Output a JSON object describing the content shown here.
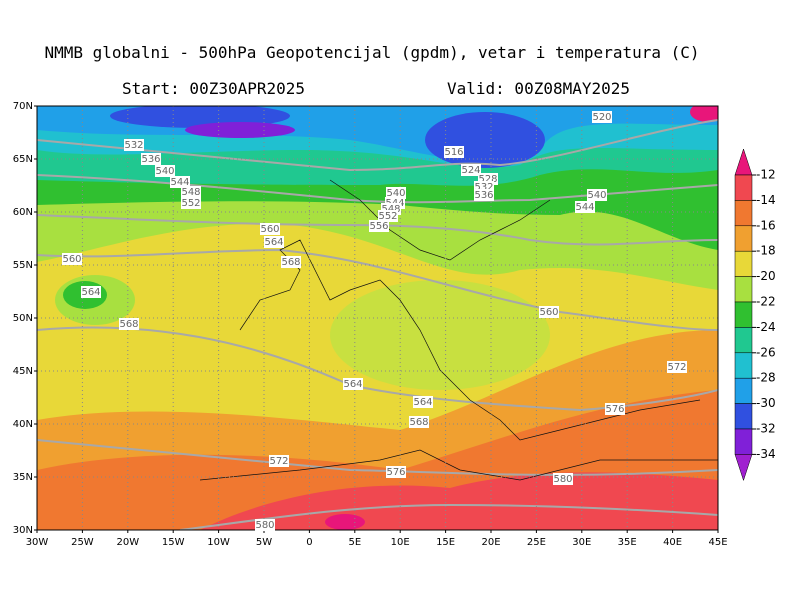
{
  "header": {
    "title": "NMMB globalni - 500hPa Geopotencijal (gpdm), vetar i temperatura (C)",
    "start": "Start: 00Z30APR2025",
    "valid": "Valid: 00Z08MAY2025"
  },
  "map": {
    "lat_labels": [
      "70N",
      "65N",
      "60N",
      "55N",
      "50N",
      "45N",
      "40N",
      "35N",
      "30N"
    ],
    "lon_labels": [
      "30W",
      "25W",
      "20W",
      "15W",
      "10W",
      "5W",
      "0",
      "5E",
      "10E",
      "15E",
      "20E",
      "25E",
      "30E",
      "35E",
      "40E",
      "45E"
    ],
    "contour_labels": [
      532,
      536,
      540,
      544,
      548,
      552,
      516,
      524,
      528,
      532,
      536,
      520,
      540,
      544,
      540,
      544,
      548,
      552,
      556,
      560,
      564,
      568,
      560,
      564,
      568,
      560,
      572,
      564,
      564,
      568,
      576,
      572,
      576,
      580,
      580
    ]
  },
  "colorbar": {
    "ticks": [
      -12,
      -14,
      -16,
      -18,
      -20,
      -22,
      -24,
      -26,
      -28,
      -30,
      -32,
      -34
    ],
    "colors": [
      "#e8167a",
      "#f04850",
      "#f07830",
      "#f0a030",
      "#e8d838",
      "#a8e040",
      "#30c030",
      "#20c890",
      "#20c0d0",
      "#20a0e8",
      "#3050e0",
      "#8020d8",
      "#a020d0"
    ]
  }
}
